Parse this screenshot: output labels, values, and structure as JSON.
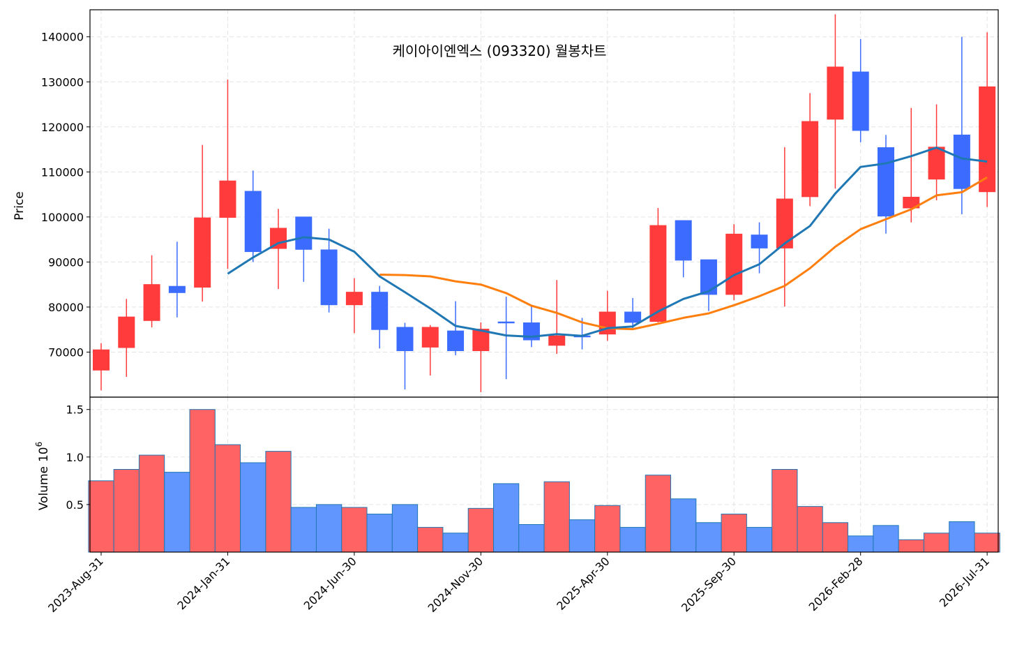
{
  "chart_data": {
    "type": "candlestick",
    "title": "케이아이엔엑스 (093320) 월봉차트",
    "price_axis": {
      "label": "Price",
      "ylim": [
        60000,
        146000
      ],
      "ticks": [
        70000,
        80000,
        90000,
        100000,
        110000,
        120000,
        130000,
        140000
      ]
    },
    "volume_axis": {
      "label": "Volume",
      "exponent_label": "10",
      "exponent": "6",
      "ylim": [
        0,
        1.63
      ],
      "ticks": [
        0.5,
        1.0,
        1.5
      ],
      "tick_labels": [
        "0.5",
        "1.0",
        "1.5"
      ]
    },
    "x_tick_labels": [
      "2023-Aug-31",
      "2024-Jan-31",
      "2024-Jun-30",
      "2024-Nov-30",
      "2025-Apr-30",
      "2025-Sep-30",
      "2026-Feb-28",
      "2026-Jul-31"
    ],
    "x_tick_indices": [
      0,
      5,
      10,
      15,
      20,
      25,
      30,
      35
    ],
    "grid": true,
    "colors": {
      "up": "#ff3b3b",
      "down": "#3b6cff",
      "up_volume": "#ff6363",
      "down_volume": "#6296ff",
      "ma_short": "#1f77b4",
      "ma_long": "#ff7f0e"
    },
    "candles": [
      {
        "date": "2023-Aug-31",
        "open": 66000,
        "high": 72000,
        "low": 61500,
        "close": 70500,
        "volume": 0.75
      },
      {
        "date": "2023-Sep-30",
        "open": 71000,
        "high": 81800,
        "low": 64500,
        "close": 77800,
        "volume": 0.87
      },
      {
        "date": "2023-Oct-31",
        "open": 77000,
        "high": 91500,
        "low": 75500,
        "close": 85000,
        "volume": 1.02
      },
      {
        "date": "2023-Nov-30",
        "open": 84600,
        "high": 94500,
        "low": 77700,
        "close": 83200,
        "volume": 0.84
      },
      {
        "date": "2023-Dec-31",
        "open": 84400,
        "high": 116000,
        "low": 81200,
        "close": 99800,
        "volume": 1.5
      },
      {
        "date": "2024-Jan-31",
        "open": 99900,
        "high": 130500,
        "low": 88500,
        "close": 108000,
        "volume": 1.13
      },
      {
        "date": "2024-Feb-29",
        "open": 105700,
        "high": 110300,
        "low": 90000,
        "close": 92300,
        "volume": 0.94
      },
      {
        "date": "2024-Mar-31",
        "open": 93000,
        "high": 101800,
        "low": 84000,
        "close": 97500,
        "volume": 1.06
      },
      {
        "date": "2024-Apr-30",
        "open": 100000,
        "high": 100000,
        "low": 85600,
        "close": 92800,
        "volume": 0.47
      },
      {
        "date": "2024-May-31",
        "open": 92700,
        "high": 97400,
        "low": 78800,
        "close": 80500,
        "volume": 0.5
      },
      {
        "date": "2024-Jun-30",
        "open": 80500,
        "high": 86400,
        "low": 74200,
        "close": 83300,
        "volume": 0.47
      },
      {
        "date": "2024-Jul-31",
        "open": 83300,
        "high": 84700,
        "low": 70800,
        "close": 75000,
        "volume": 0.4
      },
      {
        "date": "2024-Aug-31",
        "open": 75500,
        "high": 76500,
        "low": 61700,
        "close": 70300,
        "volume": 0.5
      },
      {
        "date": "2024-Sep-30",
        "open": 71100,
        "high": 76000,
        "low": 64800,
        "close": 75500,
        "volume": 0.26
      },
      {
        "date": "2024-Oct-31",
        "open": 74700,
        "high": 81300,
        "low": 69300,
        "close": 70300,
        "volume": 0.2
      },
      {
        "date": "2024-Nov-30",
        "open": 70300,
        "high": 76600,
        "low": 61100,
        "close": 75100,
        "volume": 0.46
      },
      {
        "date": "2024-Dec-31",
        "open": 76700,
        "high": 82300,
        "low": 64000,
        "close": 76500,
        "volume": 0.72
      },
      {
        "date": "2025-Jan-31",
        "open": 76500,
        "high": 80400,
        "low": 71100,
        "close": 72700,
        "volume": 0.29
      },
      {
        "date": "2025-Feb-28",
        "open": 71500,
        "high": 86000,
        "low": 69600,
        "close": 73600,
        "volume": 0.74
      },
      {
        "date": "2025-Mar-31",
        "open": 73600,
        "high": 77600,
        "low": 70600,
        "close": 73500,
        "volume": 0.34
      },
      {
        "date": "2025-Apr-30",
        "open": 74000,
        "high": 83600,
        "low": 72500,
        "close": 78900,
        "volume": 0.49
      },
      {
        "date": "2025-May-31",
        "open": 78900,
        "high": 82000,
        "low": 75300,
        "close": 76600,
        "volume": 0.26
      },
      {
        "date": "2025-Jun-30",
        "open": 76800,
        "high": 102000,
        "low": 76600,
        "close": 98100,
        "volume": 0.81
      },
      {
        "date": "2025-Jul-31",
        "open": 99200,
        "high": 99200,
        "low": 86600,
        "close": 90400,
        "volume": 0.56
      },
      {
        "date": "2025-Aug-31",
        "open": 90500,
        "high": 90500,
        "low": 79100,
        "close": 82800,
        "volume": 0.31
      },
      {
        "date": "2025-Sep-30",
        "open": 82800,
        "high": 98400,
        "low": 81500,
        "close": 96200,
        "volume": 0.4
      },
      {
        "date": "2025-Oct-31",
        "open": 96000,
        "high": 98800,
        "low": 87500,
        "close": 93100,
        "volume": 0.26
      },
      {
        "date": "2025-Nov-30",
        "open": 93100,
        "high": 115500,
        "low": 80100,
        "close": 104000,
        "volume": 0.87
      },
      {
        "date": "2025-Dec-31",
        "open": 104500,
        "high": 127500,
        "low": 102400,
        "close": 121200,
        "volume": 0.48
      },
      {
        "date": "2026-Jan-31",
        "open": 121700,
        "high": 145000,
        "low": 106300,
        "close": 133300,
        "volume": 0.31
      },
      {
        "date": "2026-Feb-28",
        "open": 132200,
        "high": 139500,
        "low": 116600,
        "close": 119200,
        "volume": 0.17
      },
      {
        "date": "2026-Mar-31",
        "open": 115400,
        "high": 118200,
        "low": 96300,
        "close": 100200,
        "volume": 0.28
      },
      {
        "date": "2026-Apr-30",
        "open": 102000,
        "high": 124200,
        "low": 98800,
        "close": 104400,
        "volume": 0.13
      },
      {
        "date": "2026-May-31",
        "open": 108400,
        "high": 125000,
        "low": 103700,
        "close": 115500,
        "volume": 0.2
      },
      {
        "date": "2026-Jun-30",
        "open": 118200,
        "high": 140000,
        "low": 100600,
        "close": 106300,
        "volume": 0.32
      },
      {
        "date": "2026-Jul-31",
        "open": 105600,
        "high": 141000,
        "low": 102200,
        "close": 128900,
        "volume": 0.2
      }
    ],
    "ma_short": [
      null,
      null,
      null,
      null,
      null,
      87400,
      91000,
      94200,
      95500,
      95000,
      92300,
      86800,
      83300,
      79700,
      75800,
      74800,
      73700,
      73400,
      74000,
      73600,
      75300,
      75700,
      79000,
      81800,
      83500,
      87100,
      89500,
      94100,
      98000,
      105200,
      111100,
      111900,
      113500,
      115400,
      113000,
      112300
    ],
    "ma_long": [
      null,
      null,
      null,
      null,
      null,
      null,
      null,
      null,
      null,
      null,
      null,
      87200,
      87100,
      86800,
      85700,
      85000,
      83100,
      80300,
      78700,
      76600,
      75300,
      75100,
      76300,
      77600,
      78600,
      80400,
      82400,
      84700,
      88600,
      93400,
      97300,
      99500,
      101700,
      104800,
      105500,
      108800
    ]
  }
}
